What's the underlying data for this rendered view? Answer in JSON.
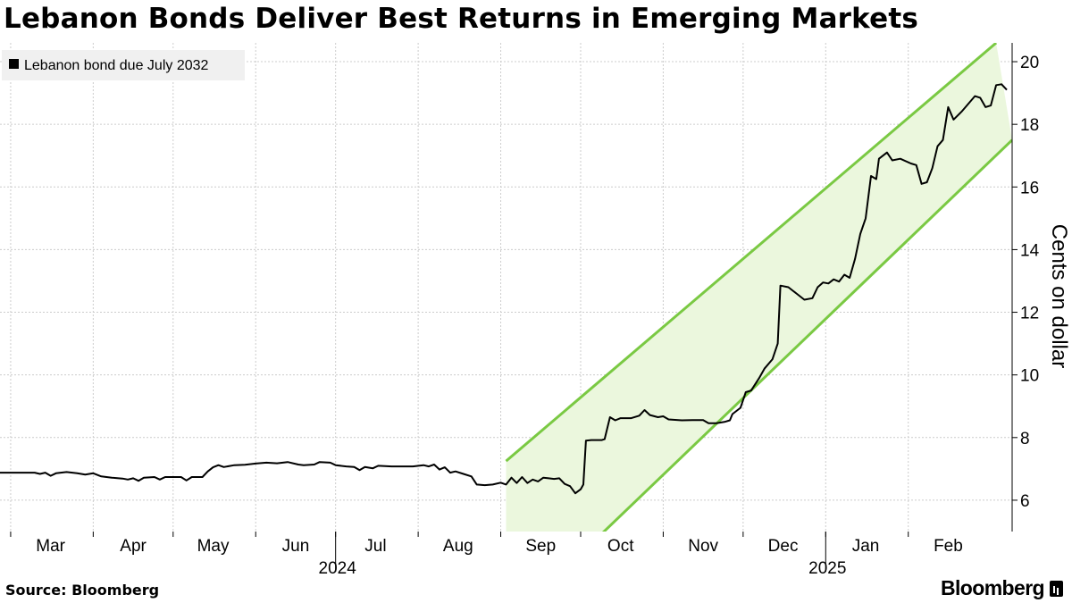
{
  "title": "Lebanon Bonds Deliver Best Returns in Emerging Markets",
  "source": "Source: Bloomberg",
  "brand": "Bloomberg",
  "colors": {
    "series": "#000000",
    "channel_line": "#7ac943",
    "channel_fill": "#ebf7dd",
    "grid": "#cccccc",
    "legend_bg": "#f0f0f0"
  },
  "chart_data": {
    "type": "line",
    "ylabel": "Cents on dollar",
    "y_axis_side": "right",
    "ylim": [
      5,
      20.6
    ],
    "yticks": [
      6,
      8,
      10,
      12,
      14,
      16,
      18,
      20
    ],
    "xlim": [
      "2024-02-26",
      "2025-03-12"
    ],
    "x_month_ticks": [
      {
        "label": "Mar",
        "date": "2024-03-01"
      },
      {
        "label": "Apr",
        "date": "2024-04-01"
      },
      {
        "label": "May",
        "date": "2024-05-01"
      },
      {
        "label": "Jun",
        "date": "2024-06-01"
      },
      {
        "label": "Jul",
        "date": "2024-07-01"
      },
      {
        "label": "Aug",
        "date": "2024-08-01"
      },
      {
        "label": "Sep",
        "date": "2024-09-01"
      },
      {
        "label": "Oct",
        "date": "2024-10-01"
      },
      {
        "label": "Nov",
        "date": "2024-11-01"
      },
      {
        "label": "Dec",
        "date": "2024-12-01"
      },
      {
        "label": "Jan",
        "date": "2025-01-01"
      },
      {
        "label": "Feb",
        "date": "2025-02-01"
      }
    ],
    "x_year_labels": [
      {
        "label": "2024",
        "date": "2024-07-01"
      },
      {
        "label": "2025",
        "date": "2025-01-01"
      }
    ],
    "grid": true,
    "legend": {
      "placement": "top-left",
      "entries": [
        "Lebanon bond due July 2032"
      ]
    },
    "series": [
      {
        "name": "Lebanon bond due July 2032",
        "points": [
          [
            "2024-02-26",
            6.88
          ],
          [
            "2024-03-10",
            6.88
          ],
          [
            "2024-03-12",
            6.84
          ],
          [
            "2024-03-14",
            6.88
          ],
          [
            "2024-03-16",
            6.78
          ],
          [
            "2024-03-18",
            6.86
          ],
          [
            "2024-03-22",
            6.9
          ],
          [
            "2024-03-26",
            6.86
          ],
          [
            "2024-03-29",
            6.82
          ],
          [
            "2024-04-01",
            6.86
          ],
          [
            "2024-04-04",
            6.76
          ],
          [
            "2024-04-08",
            6.72
          ],
          [
            "2024-04-12",
            6.69
          ],
          [
            "2024-04-14",
            6.66
          ],
          [
            "2024-04-16",
            6.7
          ],
          [
            "2024-04-18",
            6.62
          ],
          [
            "2024-04-20",
            6.72
          ],
          [
            "2024-04-24",
            6.74
          ],
          [
            "2024-04-26",
            6.66
          ],
          [
            "2024-04-28",
            6.74
          ],
          [
            "2024-05-04",
            6.74
          ],
          [
            "2024-05-06",
            6.63
          ],
          [
            "2024-05-08",
            6.74
          ],
          [
            "2024-05-12",
            6.74
          ],
          [
            "2024-05-14",
            6.92
          ],
          [
            "2024-05-16",
            7.05
          ],
          [
            "2024-05-18",
            7.12
          ],
          [
            "2024-05-20",
            7.06
          ],
          [
            "2024-05-24",
            7.12
          ],
          [
            "2024-05-28",
            7.13
          ],
          [
            "2024-06-01",
            7.17
          ],
          [
            "2024-06-05",
            7.2
          ],
          [
            "2024-06-09",
            7.18
          ],
          [
            "2024-06-13",
            7.22
          ],
          [
            "2024-06-17",
            7.14
          ],
          [
            "2024-06-19",
            7.12
          ],
          [
            "2024-06-23",
            7.14
          ],
          [
            "2024-06-25",
            7.22
          ],
          [
            "2024-06-29",
            7.2
          ],
          [
            "2024-07-01",
            7.12
          ],
          [
            "2024-07-05",
            7.08
          ],
          [
            "2024-07-08",
            7.06
          ],
          [
            "2024-07-10",
            6.96
          ],
          [
            "2024-07-12",
            7.06
          ],
          [
            "2024-07-15",
            7.02
          ],
          [
            "2024-07-17",
            7.1
          ],
          [
            "2024-07-22",
            7.08
          ],
          [
            "2024-07-26",
            7.08
          ],
          [
            "2024-07-30",
            7.08
          ],
          [
            "2024-08-03",
            7.12
          ],
          [
            "2024-08-05",
            7.08
          ],
          [
            "2024-08-07",
            7.14
          ],
          [
            "2024-08-09",
            6.98
          ],
          [
            "2024-08-11",
            7.05
          ],
          [
            "2024-08-13",
            6.88
          ],
          [
            "2024-08-15",
            6.92
          ],
          [
            "2024-08-18",
            6.84
          ],
          [
            "2024-08-21",
            6.76
          ],
          [
            "2024-08-23",
            6.5
          ],
          [
            "2024-08-26",
            6.48
          ],
          [
            "2024-08-29",
            6.5
          ],
          [
            "2024-09-01",
            6.56
          ],
          [
            "2024-09-03",
            6.5
          ],
          [
            "2024-09-05",
            6.72
          ],
          [
            "2024-09-07",
            6.55
          ],
          [
            "2024-09-09",
            6.74
          ],
          [
            "2024-09-11",
            6.55
          ],
          [
            "2024-09-13",
            6.66
          ],
          [
            "2024-09-15",
            6.6
          ],
          [
            "2024-09-17",
            6.72
          ],
          [
            "2024-09-19",
            6.7
          ],
          [
            "2024-09-21",
            6.68
          ],
          [
            "2024-09-23",
            6.7
          ],
          [
            "2024-09-25",
            6.52
          ],
          [
            "2024-09-27",
            6.45
          ],
          [
            "2024-09-29",
            6.22
          ],
          [
            "2024-10-01",
            6.35
          ],
          [
            "2024-10-02",
            6.5
          ],
          [
            "2024-10-03",
            7.9
          ],
          [
            "2024-10-05",
            7.92
          ],
          [
            "2024-10-09",
            7.92
          ],
          [
            "2024-10-10",
            7.95
          ],
          [
            "2024-10-12",
            8.65
          ],
          [
            "2024-10-14",
            8.55
          ],
          [
            "2024-10-16",
            8.62
          ],
          [
            "2024-10-20",
            8.62
          ],
          [
            "2024-10-23",
            8.7
          ],
          [
            "2024-10-25",
            8.88
          ],
          [
            "2024-10-27",
            8.72
          ],
          [
            "2024-10-30",
            8.65
          ],
          [
            "2024-11-01",
            8.68
          ],
          [
            "2024-11-03",
            8.58
          ],
          [
            "2024-11-08",
            8.55
          ],
          [
            "2024-11-12",
            8.56
          ],
          [
            "2024-11-16",
            8.56
          ],
          [
            "2024-11-18",
            8.46
          ],
          [
            "2024-11-21",
            8.46
          ],
          [
            "2024-11-24",
            8.5
          ],
          [
            "2024-11-26",
            8.55
          ],
          [
            "2024-11-27",
            8.75
          ],
          [
            "2024-11-30",
            8.95
          ],
          [
            "2024-12-02",
            9.45
          ],
          [
            "2024-12-04",
            9.5
          ],
          [
            "2024-12-07",
            9.9
          ],
          [
            "2024-12-09",
            10.2
          ],
          [
            "2024-12-12",
            10.5
          ],
          [
            "2024-12-14",
            11.0
          ],
          [
            "2024-12-15",
            12.85
          ],
          [
            "2024-12-18",
            12.8
          ],
          [
            "2024-12-21",
            12.6
          ],
          [
            "2024-12-24",
            12.4
          ],
          [
            "2024-12-27",
            12.45
          ],
          [
            "2024-12-29",
            12.8
          ],
          [
            "2024-12-31",
            12.95
          ],
          [
            "2025-01-02",
            12.92
          ],
          [
            "2025-01-04",
            13.05
          ],
          [
            "2025-01-06",
            12.98
          ],
          [
            "2025-01-08",
            13.2
          ],
          [
            "2025-01-10",
            13.1
          ],
          [
            "2025-01-12",
            13.7
          ],
          [
            "2025-01-14",
            14.5
          ],
          [
            "2025-01-16",
            15.0
          ],
          [
            "2025-01-18",
            16.35
          ],
          [
            "2025-01-20",
            16.25
          ],
          [
            "2025-01-21",
            16.9
          ],
          [
            "2025-01-24",
            17.1
          ],
          [
            "2025-01-26",
            16.85
          ],
          [
            "2025-01-29",
            16.9
          ],
          [
            "2025-02-02",
            16.75
          ],
          [
            "2025-02-04",
            16.7
          ],
          [
            "2025-02-06",
            16.1
          ],
          [
            "2025-02-08",
            16.15
          ],
          [
            "2025-02-10",
            16.6
          ],
          [
            "2025-02-12",
            17.3
          ],
          [
            "2025-02-14",
            17.5
          ],
          [
            "2025-02-16",
            18.55
          ],
          [
            "2025-02-18",
            18.15
          ],
          [
            "2025-02-21",
            18.4
          ],
          [
            "2025-02-23",
            18.6
          ],
          [
            "2025-02-26",
            18.9
          ],
          [
            "2025-02-28",
            18.85
          ],
          [
            "2025-03-02",
            18.55
          ],
          [
            "2025-03-04",
            18.6
          ],
          [
            "2025-03-06",
            19.25
          ],
          [
            "2025-03-08",
            19.28
          ],
          [
            "2025-03-10",
            19.1
          ]
        ]
      }
    ],
    "annotation_channel": {
      "upper": [
        [
          "2024-09-03",
          7.25
        ],
        [
          "2025-03-06",
          20.6
        ]
      ],
      "lower": [
        [
          "2024-09-03",
          2.0
        ],
        [
          "2025-03-12",
          17.5
        ]
      ]
    }
  }
}
